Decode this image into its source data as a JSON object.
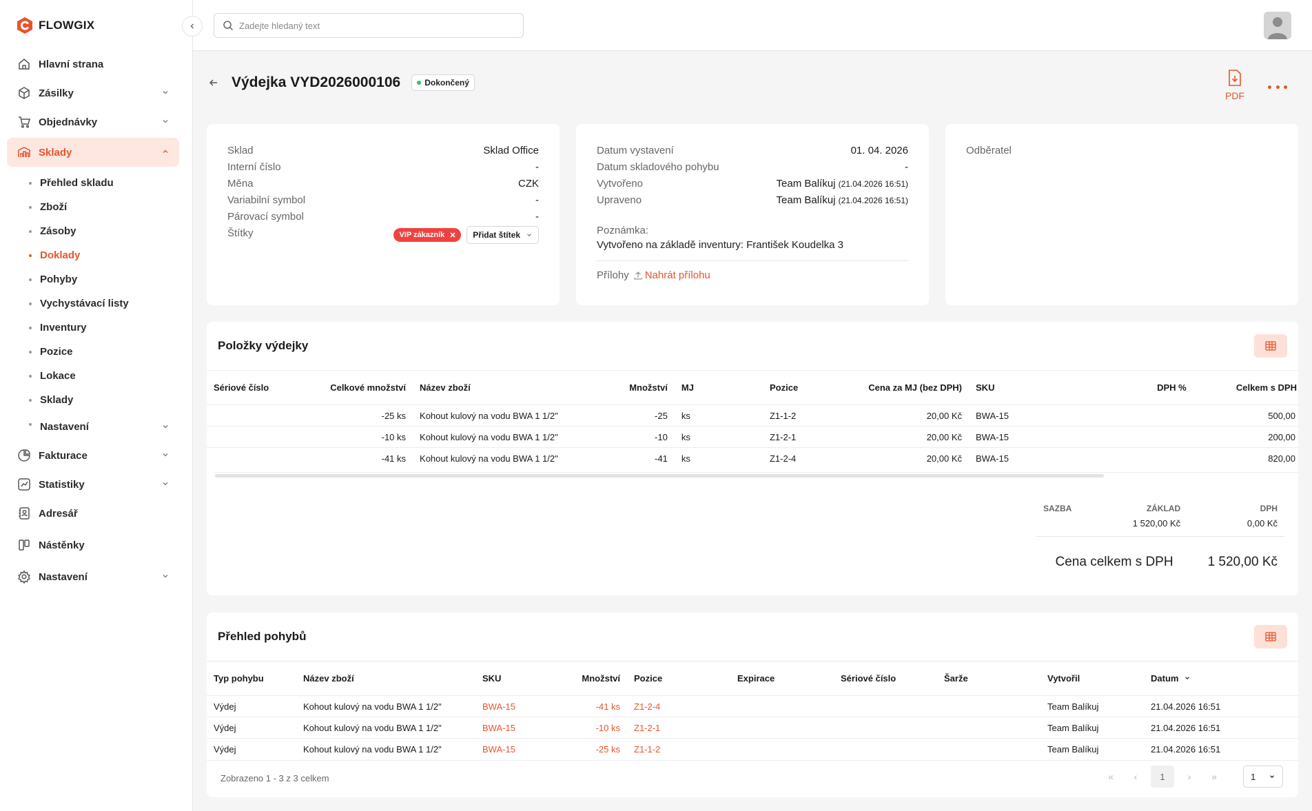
{
  "app": {
    "name": "FLOWGIX",
    "accent": "#e8542a"
  },
  "search": {
    "placeholder": "Zadejte hledaný text"
  },
  "sidebar": {
    "items": [
      {
        "label": "Hlavní strana",
        "icon": "home-icon"
      },
      {
        "label": "Zásilky",
        "icon": "box-icon"
      },
      {
        "label": "Objednávky",
        "icon": "cart-icon"
      },
      {
        "label": "Sklady",
        "icon": "warehouse-icon"
      }
    ],
    "sklady_sub": [
      "Přehled skladu",
      "Zboží",
      "Zásoby",
      "Doklady",
      "Pohyby",
      "Vychystávací listy",
      "Inventury",
      "Pozice",
      "Lokace",
      "Sklady",
      "Nastavení"
    ],
    "bottom_items": [
      {
        "label": "Fakturace",
        "icon": "invoice-icon"
      },
      {
        "label": "Statistiky",
        "icon": "stats-icon"
      },
      {
        "label": "Adresář",
        "icon": "contacts-icon"
      },
      {
        "label": "Nástěnky",
        "icon": "board-icon"
      },
      {
        "label": "Nastavení",
        "icon": "gear-icon"
      }
    ]
  },
  "header": {
    "title": "Výdejka VYD2026000106",
    "status": "Dokončený",
    "pdf_label": "PDF"
  },
  "info_card": {
    "rows": [
      {
        "k": "Sklad",
        "v": "Sklad Office"
      },
      {
        "k": "Interní číslo",
        "v": "-"
      },
      {
        "k": "Měna",
        "v": "CZK"
      },
      {
        "k": "Variabilní symbol",
        "v": "-"
      },
      {
        "k": "Párovací symbol",
        "v": "-"
      }
    ],
    "tags_label": "Štítky",
    "tag_vip": "VIP zákazník",
    "add_tag": "Přidat štítek"
  },
  "dates_card": {
    "rows": [
      {
        "k": "Datum vystavení",
        "v": "01. 04. 2026",
        "s": ""
      },
      {
        "k": "Datum skladového pohybu",
        "v": "-",
        "s": ""
      },
      {
        "k": "Vytvořeno",
        "v": "Team Balíkuj",
        "s": "(21.04.2026 16:51)"
      },
      {
        "k": "Upraveno",
        "v": "Team Balíkuj",
        "s": "(21.04.2026 16:51)"
      }
    ],
    "note_label": "Poznámka:",
    "note": "Vytvořeno na základě inventury: František Koudelka 3",
    "attachments_label": "Přílohy",
    "upload_label": "Nahrát přílohu"
  },
  "customer_card": {
    "label": "Odběratel"
  },
  "items_section": {
    "title": "Položky výdejky",
    "columns": [
      "Sériové číslo",
      "Celkové množství",
      "Název zboží",
      "Množství",
      "MJ",
      "Pozice",
      "Cena za MJ (bez DPH)",
      "SKU",
      "DPH %",
      "Celkem s DPH"
    ],
    "rows": [
      [
        "",
        "-25 ks",
        "Kohout kulový na vodu BWA 1 1/2\"",
        "-25",
        "ks",
        "Z1-1-2",
        "20,00 Kč",
        "BWA-15",
        "",
        "500,00"
      ],
      [
        "",
        "-10 ks",
        "Kohout kulový na vodu BWA 1 1/2\"",
        "-10",
        "ks",
        "Z1-2-1",
        "20,00 Kč",
        "BWA-15",
        "",
        "200,00"
      ],
      [
        "",
        "-41 ks",
        "Kohout kulový na vodu BWA 1 1/2\"",
        "-41",
        "ks",
        "Z1-2-4",
        "20,00 Kč",
        "BWA-15",
        "",
        "820,00"
      ]
    ],
    "summary": {
      "col_sazba": "SAZBA",
      "col_zaklad": "ZÁKLAD",
      "col_dph": "DPH",
      "zaklad": "1 520,00 Kč",
      "dph": "0,00 Kč",
      "total_label": "Cena celkem s DPH",
      "total": "1 520,00 Kč"
    }
  },
  "moves_section": {
    "title": "Přehled pohybů",
    "columns": [
      "Typ pohybu",
      "Název zboží",
      "SKU",
      "Množství",
      "Pozice",
      "Expirace",
      "Sériové číslo",
      "Šarže",
      "Vytvořil",
      "Datum"
    ],
    "rows": [
      [
        "Výdej",
        "Kohout kulový na vodu BWA 1 1/2\"",
        "BWA-15",
        "-41 ks",
        "Z1-2-4",
        "",
        "",
        "",
        "Team Balíkuj",
        "21.04.2026 16:51"
      ],
      [
        "Výdej",
        "Kohout kulový na vodu BWA 1 1/2\"",
        "BWA-15",
        "-10 ks",
        "Z1-2-1",
        "",
        "",
        "",
        "Team Balíkuj",
        "21.04.2026 16:51"
      ],
      [
        "Výdej",
        "Kohout kulový na vodu BWA 1 1/2\"",
        "BWA-15",
        "-25 ks",
        "Z1-1-2",
        "",
        "",
        "",
        "Team Balíkuj",
        "21.04.2026 16:51"
      ]
    ],
    "footer": "Zobrazeno 1 - 3 z 3 celkem",
    "page": "1",
    "page_size": "1"
  }
}
